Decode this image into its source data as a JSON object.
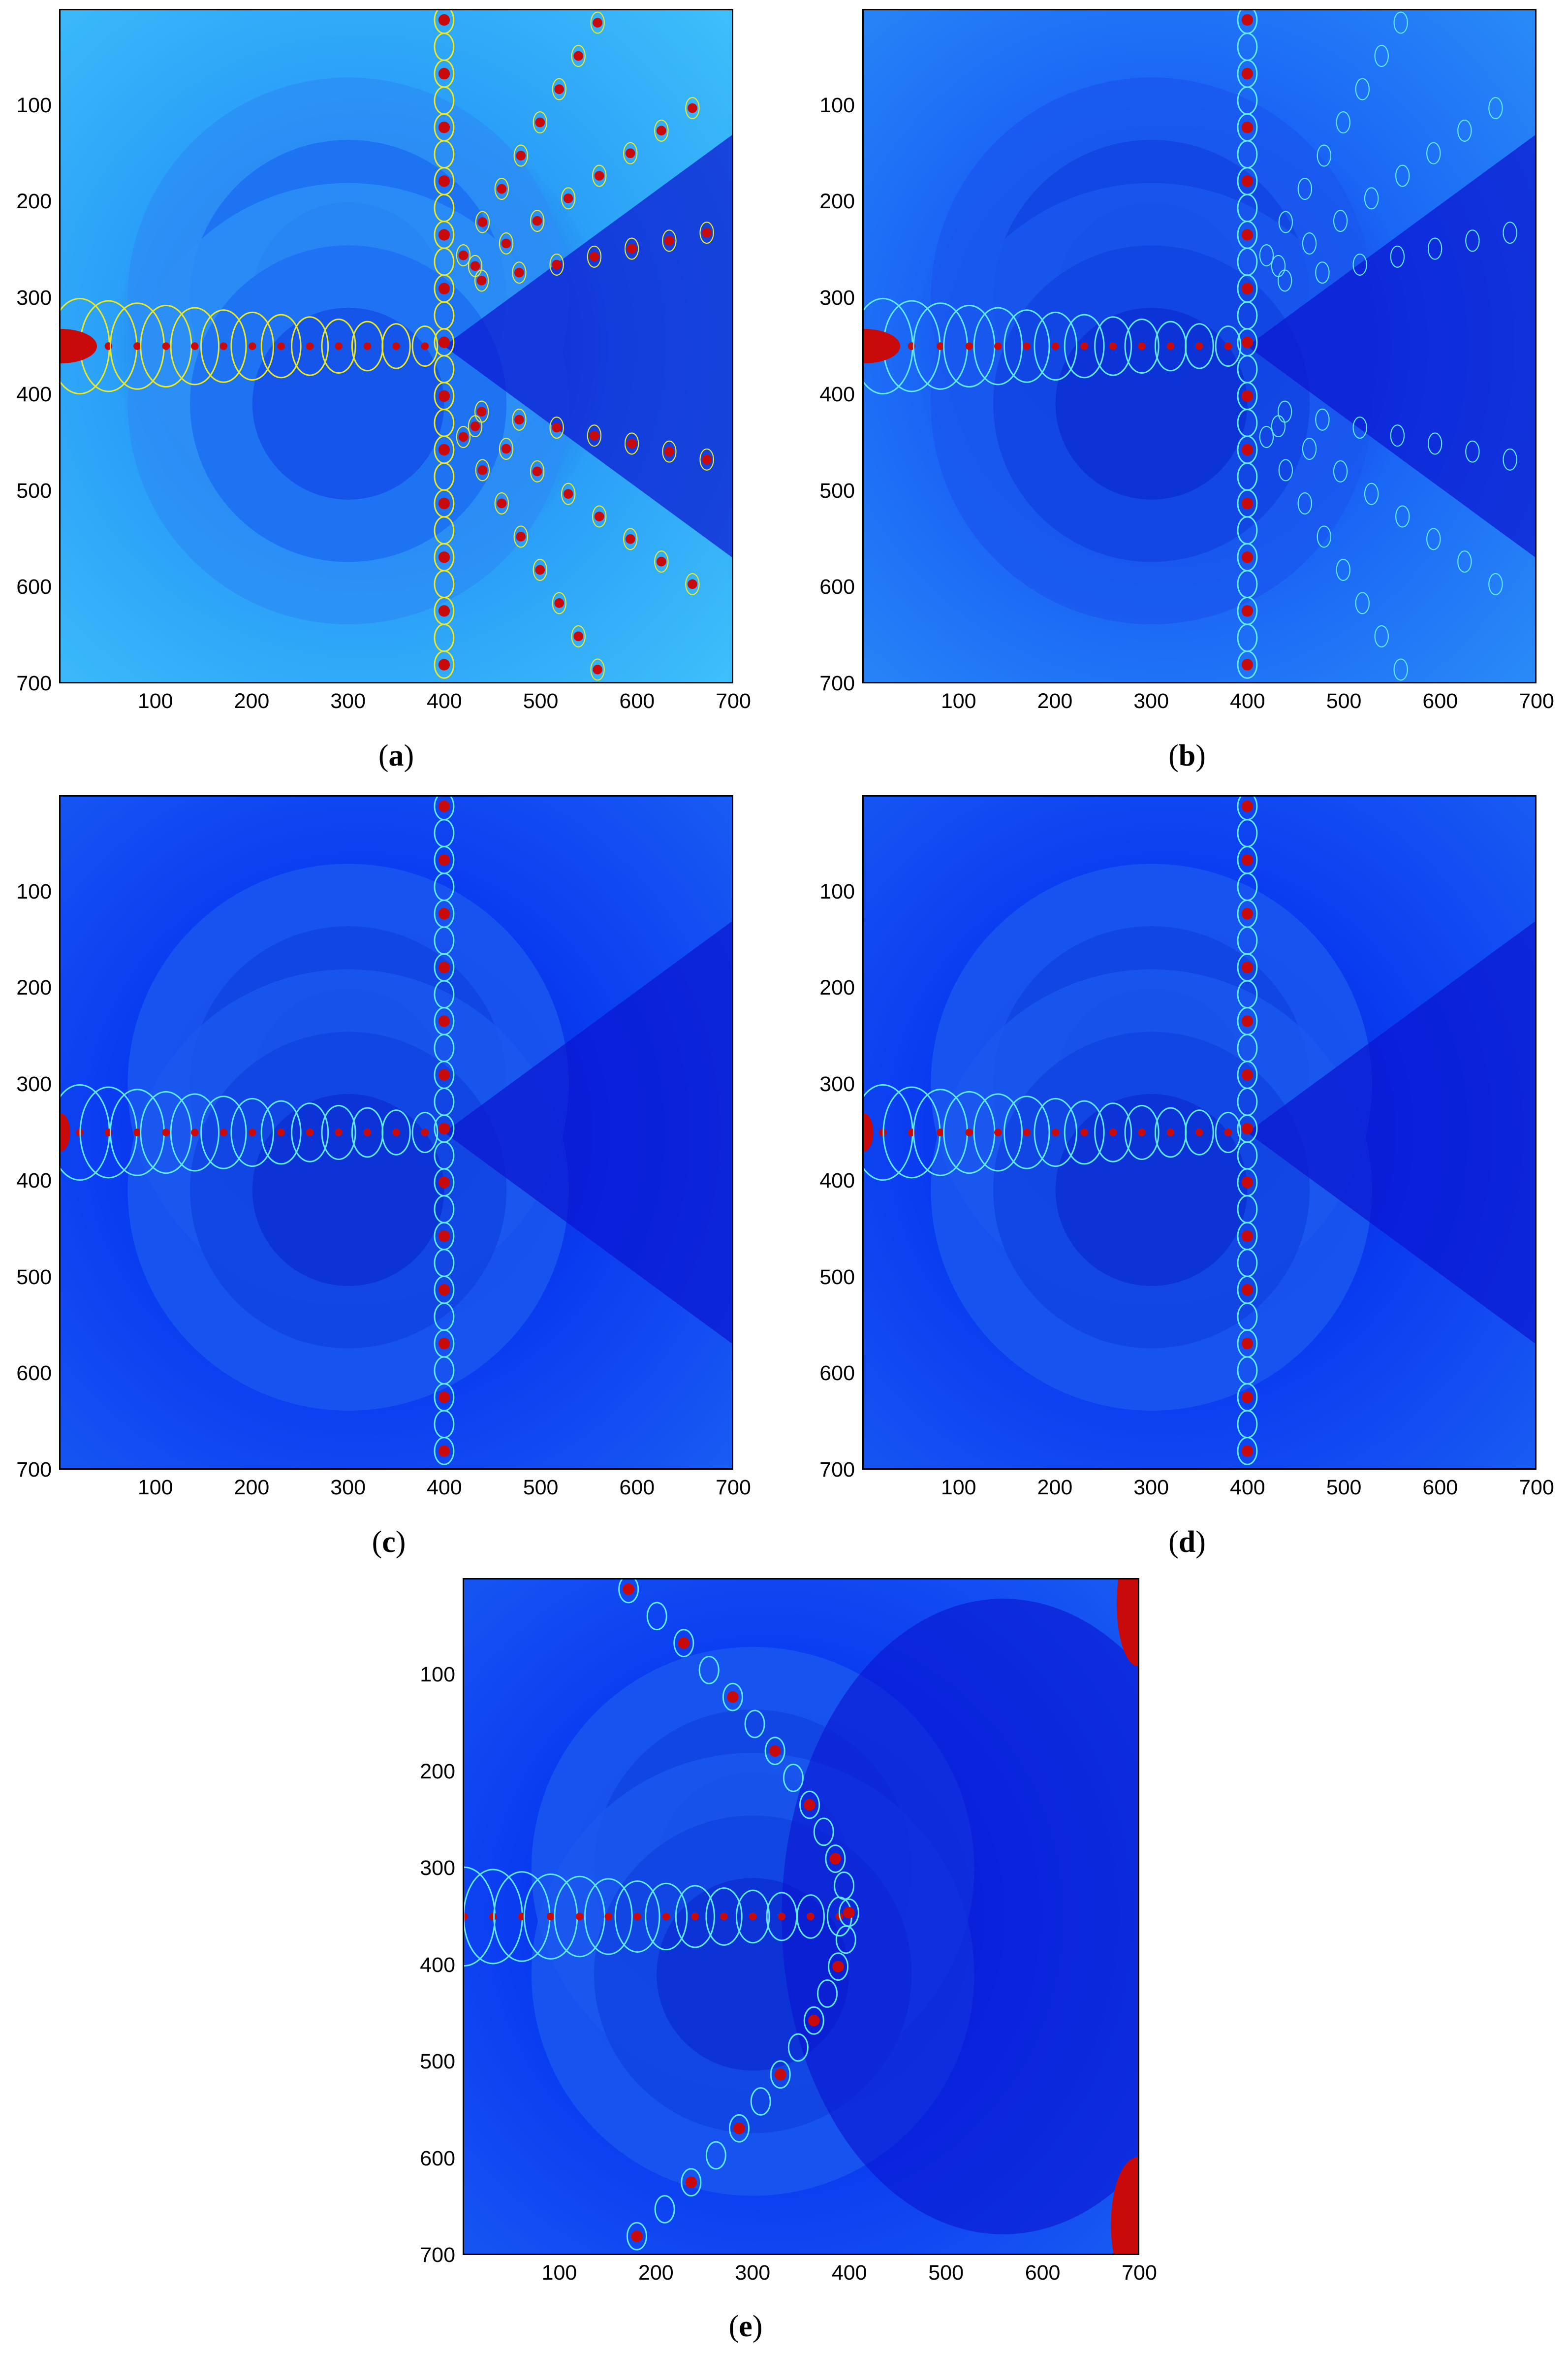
{
  "figure": {
    "panels": [
      {
        "id": "a",
        "caption_open": "(",
        "caption_letter": "a",
        "caption_close": ")",
        "variant": "bright"
      },
      {
        "id": "b",
        "caption_open": "(",
        "caption_letter": "b",
        "caption_close": ")",
        "variant": "medium"
      },
      {
        "id": "c",
        "caption_open": "(",
        "caption_letter": "c",
        "caption_close": ")",
        "variant": "dark"
      },
      {
        "id": "d",
        "caption_open": "(",
        "caption_letter": "d",
        "caption_close": ")",
        "variant": "dark"
      },
      {
        "id": "e",
        "caption_open": "(",
        "caption_letter": "e",
        "caption_close": ")",
        "variant": "smooth"
      }
    ],
    "x_ticks": [
      "100",
      "200",
      "300",
      "400",
      "500",
      "600",
      "700"
    ],
    "y_ticks": [
      "100",
      "200",
      "300",
      "400",
      "500",
      "600",
      "700"
    ],
    "x_tick_values": [
      100,
      200,
      300,
      400,
      500,
      600,
      700
    ],
    "y_tick_values": [
      100,
      200,
      300,
      400,
      500,
      600,
      700
    ],
    "axis_range": [
      0,
      700
    ],
    "colors": {
      "background": "#0a3cf0",
      "deep": "#0a14d0",
      "mid": "#1a66f5",
      "light": "#2aa0f8",
      "highlight": "#c80a0a",
      "cyan": "#60e8f0",
      "yellow": "#e8e82a"
    }
  }
}
